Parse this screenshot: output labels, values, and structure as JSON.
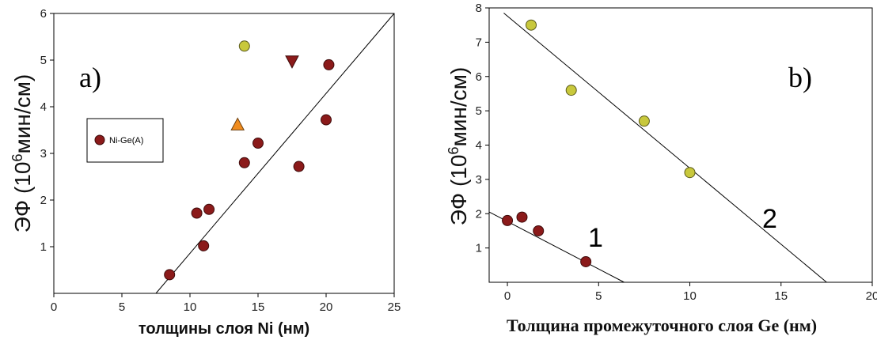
{
  "chart_data": [
    {
      "type": "scatter",
      "panel_label": "a)",
      "xlabel": "толщины слоя Ni (нм)",
      "ylabel": "ЭФ (10",
      "ylabel_exp": "6",
      "ylabel_unit": "мин/см)",
      "xlim": [
        0,
        25
      ],
      "ylim": [
        0,
        6
      ],
      "xticks": [
        0,
        5,
        10,
        15,
        20,
        25
      ],
      "yticks": [
        1,
        2,
        3,
        4,
        5,
        6
      ],
      "grid": false,
      "legend": {
        "position": "left-middle",
        "entries": [
          {
            "name": "Ni-Ge(A)",
            "marker": "circle",
            "color": "#8b1a1a"
          }
        ]
      },
      "series": [
        {
          "name": "Ni-Ge(A)",
          "marker": "circle",
          "color": "#8b1a1a",
          "points": [
            {
              "x": 8.5,
              "y": 0.4
            },
            {
              "x": 10.5,
              "y": 1.72
            },
            {
              "x": 11.0,
              "y": 1.02
            },
            {
              "x": 11.4,
              "y": 1.8
            },
            {
              "x": 14.0,
              "y": 2.8
            },
            {
              "x": 15.0,
              "y": 3.22
            },
            {
              "x": 18.0,
              "y": 2.72
            },
            {
              "x": 20.0,
              "y": 3.72
            },
            {
              "x": 20.2,
              "y": 4.9
            }
          ]
        },
        {
          "marker": "circle",
          "color": "#c8c83c",
          "points": [
            {
              "x": 14.0,
              "y": 5.3
            }
          ]
        },
        {
          "marker": "triangle-down",
          "color": "#8b1a1a",
          "points": [
            {
              "x": 17.5,
              "y": 4.97
            }
          ]
        },
        {
          "marker": "triangle-up",
          "color": "#f08c1e",
          "points": [
            {
              "x": 13.5,
              "y": 3.62
            }
          ]
        }
      ],
      "fit_lines": [
        {
          "x1": 7.5,
          "y1": 0.0,
          "x2": 25.0,
          "y2": 6.0
        }
      ]
    },
    {
      "type": "scatter",
      "panel_label": "b)",
      "xlabel": "Толщина промежуточного слоя Ge (нм)",
      "ylabel": "ЭФ (10",
      "ylabel_exp": "6",
      "ylabel_unit": "мин/см)",
      "xlim": [
        -1,
        20
      ],
      "ylim": [
        0,
        8
      ],
      "xticks": [
        0,
        5,
        10,
        15,
        20
      ],
      "yticks": [
        1,
        2,
        3,
        4,
        5,
        6,
        7,
        8
      ],
      "grid": false,
      "series": [
        {
          "marker": "circle",
          "color": "#8b1a1a",
          "points": [
            {
              "x": 0.0,
              "y": 1.8
            },
            {
              "x": 0.8,
              "y": 1.9
            },
            {
              "x": 1.7,
              "y": 1.5
            },
            {
              "x": 4.3,
              "y": 0.6
            }
          ]
        },
        {
          "marker": "circle",
          "color": "#c8c83c",
          "points": [
            {
              "x": 1.3,
              "y": 7.5
            },
            {
              "x": 3.5,
              "y": 5.6
            },
            {
              "x": 7.5,
              "y": 4.7
            },
            {
              "x": 10.0,
              "y": 3.2
            }
          ]
        }
      ],
      "fit_lines": [
        {
          "label": "1",
          "x1": -1.0,
          "y1": 2.05,
          "x2": 6.4,
          "y2": 0.0
        },
        {
          "label": "2",
          "x1": -0.2,
          "y1": 7.85,
          "x2": 17.5,
          "y2": 0.0
        }
      ]
    }
  ]
}
